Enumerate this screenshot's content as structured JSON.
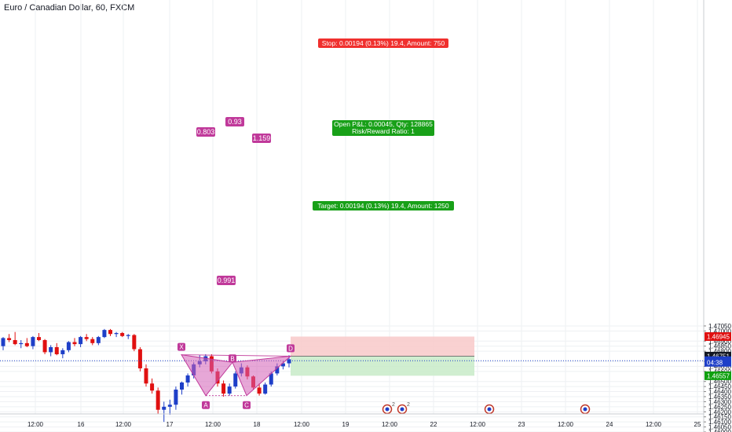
{
  "chart_data": {
    "type": "candlestick",
    "title": "Euro / Canadian Dollar, 60, FXCM",
    "ylim": [
      1.46,
      1.471
    ],
    "x_tick_labels": [
      "12:00",
      "16",
      "12:00",
      "17",
      "12:00",
      "18",
      "12:00",
      "19",
      "12:00",
      "22",
      "12:00",
      "23",
      "12:00",
      "24",
      "12:00",
      "25"
    ],
    "y_tick_labels": [
      "1.47050",
      "1.47000",
      "1.46900",
      "1.46850",
      "1.46800",
      "1.46700",
      "1.46650",
      "1.46600",
      "1.46500",
      "1.46450",
      "1.46400",
      "1.46350",
      "1.46300",
      "1.46250",
      "1.46200",
      "1.46150",
      "1.46100",
      "1.46050",
      "1.46000"
    ],
    "y_tick_values": [
      1.4705,
      1.47,
      1.469,
      1.4685,
      1.468,
      1.467,
      1.4665,
      1.466,
      1.465,
      1.4645,
      1.464,
      1.4635,
      1.463,
      1.4625,
      1.462,
      1.4615,
      1.461,
      1.4605,
      1.46
    ],
    "price_labels": [
      {
        "text": "1.46945",
        "value": 1.46945,
        "color": "#e01010"
      },
      {
        "text": "1.46751",
        "value": 1.46751,
        "color": "#131722"
      },
      {
        "text": "1.46706",
        "value": 1.46706,
        "color": "#1e3fc8"
      },
      {
        "text": "04:38",
        "value": 1.4669,
        "color": "#1e3fc8"
      },
      {
        "text": "1.46557",
        "value": 1.46557,
        "color": "#10a010"
      }
    ],
    "current_price": 1.46706,
    "candles": [
      [
        1.4685,
        1.4694,
        1.4681,
        1.4693
      ],
      [
        1.4693,
        1.4697,
        1.4689,
        1.4691
      ],
      [
        1.4691,
        1.4699,
        1.4686,
        1.4687
      ],
      [
        1.4687,
        1.4691,
        1.4683,
        1.4688
      ],
      [
        1.4688,
        1.4693,
        1.4684,
        1.4685
      ],
      [
        1.4685,
        1.4695,
        1.4682,
        1.4694
      ],
      [
        1.4694,
        1.4698,
        1.469,
        1.4691
      ],
      [
        1.4691,
        1.4692,
        1.4677,
        1.4679
      ],
      [
        1.4679,
        1.4686,
        1.4675,
        1.4684
      ],
      [
        1.4684,
        1.4688,
        1.4676,
        1.4677
      ],
      [
        1.4677,
        1.4683,
        1.4673,
        1.4681
      ],
      [
        1.4681,
        1.469,
        1.4679,
        1.4689
      ],
      [
        1.4689,
        1.4693,
        1.4685,
        1.4687
      ],
      [
        1.4687,
        1.4695,
        1.4684,
        1.4694
      ],
      [
        1.4694,
        1.4697,
        1.469,
        1.4692
      ],
      [
        1.4692,
        1.4694,
        1.4686,
        1.4688
      ],
      [
        1.4688,
        1.4695,
        1.4686,
        1.4694
      ],
      [
        1.4694,
        1.4702,
        1.4693,
        1.4701
      ],
      [
        1.4701,
        1.4702,
        1.4695,
        1.4697
      ],
      [
        1.4697,
        1.4699,
        1.4694,
        1.4698
      ],
      [
        1.4698,
        1.4699,
        1.4694,
        1.4695
      ],
      [
        1.4695,
        1.4697,
        1.4692,
        1.4696
      ],
      [
        1.4696,
        1.4697,
        1.468,
        1.4682
      ],
      [
        1.4682,
        1.4684,
        1.466,
        1.4663
      ],
      [
        1.4663,
        1.4667,
        1.4645,
        1.4648
      ],
      [
        1.4648,
        1.4653,
        1.4638,
        1.4641
      ],
      [
        1.4641,
        1.4644,
        1.4618,
        1.4622
      ],
      [
        1.4622,
        1.463,
        1.461,
        1.4625
      ],
      [
        1.4625,
        1.4632,
        1.4617,
        1.4627
      ],
      [
        1.4627,
        1.4645,
        1.4622,
        1.4642
      ],
      [
        1.4642,
        1.465,
        1.4637,
        1.4649
      ],
      [
        1.4649,
        1.4658,
        1.4645,
        1.4656
      ],
      [
        1.4656,
        1.4669,
        1.4653,
        1.4667
      ],
      [
        1.4667,
        1.4676,
        1.4664,
        1.467
      ],
      [
        1.467,
        1.4677,
        1.4667,
        1.4675
      ],
      [
        1.4675,
        1.4677,
        1.4658,
        1.466
      ],
      [
        1.466,
        1.4663,
        1.4645,
        1.4648
      ],
      [
        1.4648,
        1.4651,
        1.4635,
        1.4638
      ],
      [
        1.4638,
        1.4648,
        1.4636,
        1.4645
      ],
      [
        1.4645,
        1.466,
        1.4643,
        1.4658
      ],
      [
        1.4658,
        1.4668,
        1.4655,
        1.4664
      ],
      [
        1.4664,
        1.4666,
        1.4652,
        1.4655
      ],
      [
        1.4655,
        1.4656,
        1.4642,
        1.4644
      ],
      [
        1.4644,
        1.4648,
        1.4636,
        1.4638
      ],
      [
        1.4638,
        1.4649,
        1.4637,
        1.4647
      ],
      [
        1.4647,
        1.466,
        1.4645,
        1.4658
      ],
      [
        1.4658,
        1.4668,
        1.4656,
        1.4665
      ],
      [
        1.4665,
        1.467,
        1.4662,
        1.4668
      ],
      [
        1.4668,
        1.4676,
        1.4664,
        1.4672
      ]
    ],
    "pattern": {
      "name": "bearish harmonic (XABCD)",
      "points": [
        {
          "label": "X",
          "price": 1.46765
        },
        {
          "label": "A",
          "price": 1.4636
        },
        {
          "label": "B",
          "price": 1.4669
        },
        {
          "label": "C",
          "price": 1.4636
        },
        {
          "label": "D",
          "price": 1.46751
        }
      ],
      "ratios": [
        "0.803",
        "0.93",
        "1.159",
        "0.991"
      ]
    },
    "position": {
      "stop_price": 1.46945,
      "entry_price": 1.46751,
      "target_price": 1.46557,
      "stop_label": "Stop: 0.00194 (0.13%) 19.4, Amount: 750",
      "open_label": "Open P&L: 0.00045, Qty: 128865",
      "rr_label": "Risk/Reward Ratio: 1",
      "target_label": "Target: 0.00194 (0.13%) 19.4, Amount: 1250"
    },
    "events": [
      {
        "marker": "2"
      },
      {
        "marker": "2"
      },
      {
        "marker": ""
      },
      {
        "marker": ""
      }
    ]
  },
  "colors": {
    "bull": "#1e3fc8",
    "bear": "#e01010",
    "pattern_fill": "#d35fb7",
    "pattern_line": "#c0399a",
    "stop_zone": "#f8c9c9",
    "target_zone": "#c8ebc8",
    "stop_label_bg": "#f0302e",
    "target_label_bg": "#18a018",
    "grid": "#eef0f3",
    "current_line": "#1e3fc8"
  }
}
